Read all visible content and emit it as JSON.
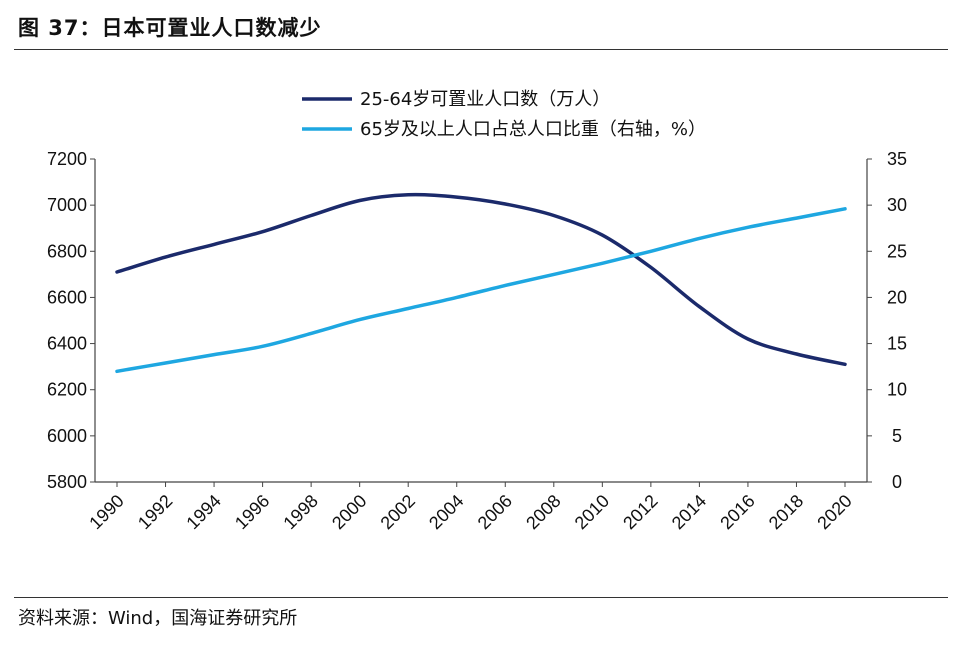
{
  "figure": {
    "title": "图 37：日本可置业人口数减少",
    "source": "资料来源：Wind，国海证券研究所"
  },
  "chart_data": {
    "type": "line",
    "title": "日本可置业人口数减少",
    "x": [
      1990,
      1992,
      1994,
      1996,
      1998,
      2000,
      2002,
      2004,
      2006,
      2008,
      2010,
      2012,
      2014,
      2016,
      2018,
      2020
    ],
    "x_ticks": [
      "1990",
      "1992",
      "1994",
      "1996",
      "1998",
      "2000",
      "2002",
      "2004",
      "2006",
      "2008",
      "2010",
      "2012",
      "2014",
      "2016",
      "2018",
      "2020"
    ],
    "left_axis": {
      "min": 5800,
      "max": 7200,
      "step": 200,
      "ticks": [
        "5800",
        "6000",
        "6200",
        "6400",
        "6600",
        "6800",
        "7000",
        "7200"
      ]
    },
    "right_axis": {
      "min": 0,
      "max": 35,
      "step": 5,
      "ticks": [
        "0",
        "5",
        "10",
        "15",
        "20",
        "25",
        "30",
        "35"
      ]
    },
    "series": [
      {
        "name": "25-64岁可置业人口数（万人）",
        "axis": "left",
        "color": "#1b2a6b",
        "values": [
          6710,
          6775,
          6830,
          6885,
          6955,
          7020,
          7045,
          7035,
          7005,
          6955,
          6870,
          6730,
          6560,
          6420,
          6355,
          6310
        ]
      },
      {
        "name": "65岁及以上人口占总人口比重（右轴，%）",
        "axis": "right",
        "color": "#1ea7e1",
        "values": [
          12.0,
          12.9,
          13.8,
          14.7,
          16.1,
          17.6,
          18.8,
          20.0,
          21.3,
          22.5,
          23.7,
          25.0,
          26.4,
          27.6,
          28.6,
          29.6
        ]
      }
    ],
    "legend_position": "top-center"
  }
}
